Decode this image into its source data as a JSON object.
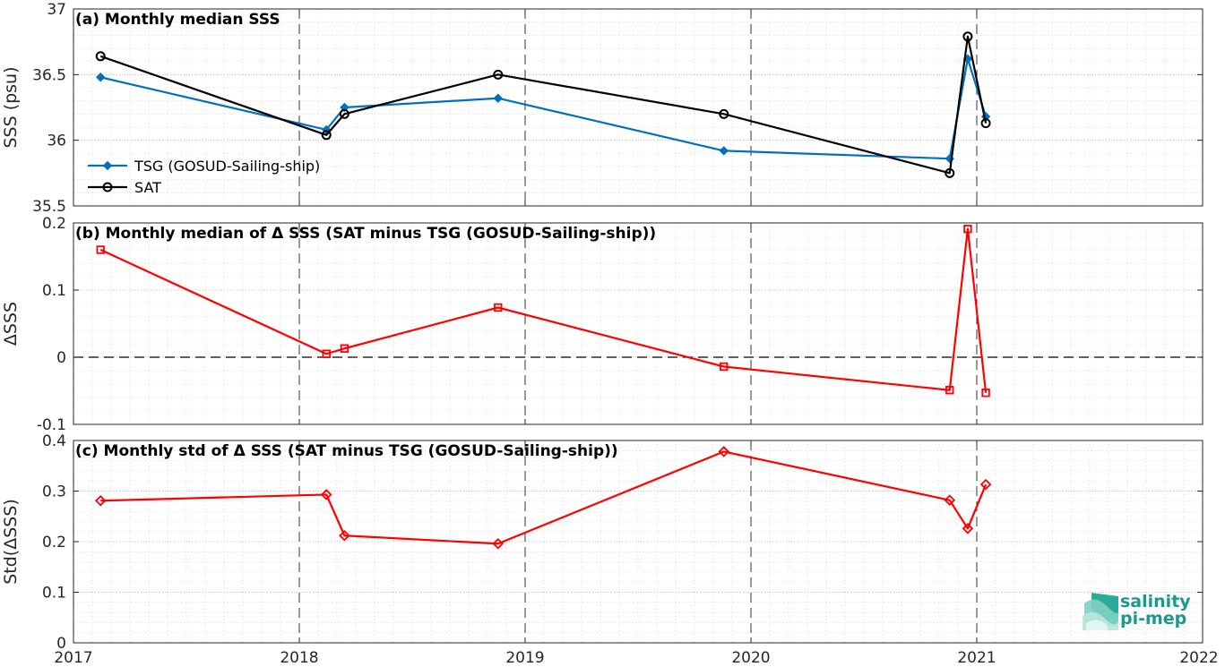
{
  "chart_data": [
    {
      "type": "line",
      "panel": "a",
      "title": "(a) Monthly median SSS",
      "ylabel": "SSS (psu)",
      "ylim": [
        35.5,
        37
      ],
      "yticks": [
        35.5,
        36,
        36.5,
        37
      ],
      "ytick_labels": [
        "35.5",
        "36",
        "36.5",
        "37"
      ],
      "xlim": [
        2017,
        2022
      ],
      "grid": true,
      "legend_position": "center-left",
      "series": [
        {
          "name": "TSG (GOSUD-Sailing-ship)",
          "color": "#0072bd",
          "marker": "filled-diamond",
          "x": [
            2017.12,
            2018.12,
            2018.2,
            2018.88,
            2019.88,
            2020.88,
            2020.96,
            2021.04
          ],
          "y": [
            36.48,
            36.08,
            36.25,
            36.32,
            35.92,
            35.86,
            36.62,
            36.18
          ]
        },
        {
          "name": "SAT",
          "color": "#000000",
          "marker": "open-circle",
          "x": [
            2017.12,
            2018.12,
            2018.2,
            2018.88,
            2019.88,
            2020.88,
            2020.96,
            2021.04
          ],
          "y": [
            36.64,
            36.04,
            36.2,
            36.5,
            36.2,
            35.75,
            36.79,
            36.13
          ]
        }
      ]
    },
    {
      "type": "line",
      "panel": "b",
      "title": "(b) Monthly median of Δ SSS (SAT minus TSG (GOSUD-Sailing-ship))",
      "ylabel": "ΔSSS",
      "ylim": [
        -0.1,
        0.2
      ],
      "yticks": [
        -0.1,
        0,
        0.1,
        0.2
      ],
      "ytick_labels": [
        "-0.1",
        "0",
        "0.1",
        "0.2"
      ],
      "xlim": [
        2017,
        2022
      ],
      "grid": true,
      "zero_line": true,
      "series": [
        {
          "color": "#ff0000",
          "marker": "open-square",
          "x": [
            2017.12,
            2018.12,
            2018.2,
            2018.88,
            2019.88,
            2020.88,
            2020.96,
            2021.04
          ],
          "y": [
            0.16,
            0.005,
            0.013,
            0.074,
            -0.014,
            -0.049,
            0.191,
            -0.053
          ]
        }
      ]
    },
    {
      "type": "line",
      "panel": "c",
      "title": "(c) Monthly std of Δ SSS (SAT minus TSG (GOSUD-Sailing-ship))",
      "ylabel": "Std(ΔSSS)",
      "ylim": [
        0,
        0.4
      ],
      "yticks": [
        0,
        0.1,
        0.2,
        0.3,
        0.4
      ],
      "ytick_labels": [
        "0",
        "0.1",
        "0.2",
        "0.3",
        "0.4"
      ],
      "xlim": [
        2017,
        2022
      ],
      "xticks": [
        2017,
        2018,
        2019,
        2020,
        2021,
        2022
      ],
      "xtick_labels": [
        "2017",
        "2018",
        "2019",
        "2020",
        "2021",
        "2022"
      ],
      "grid": true,
      "series": [
        {
          "color": "#ff0000",
          "marker": "open-diamond",
          "x": [
            2017.12,
            2018.12,
            2018.2,
            2018.88,
            2019.88,
            2020.88,
            2020.96,
            2021.04
          ],
          "y": [
            0.281,
            0.293,
            0.212,
            0.196,
            0.378,
            0.282,
            0.226,
            0.313
          ]
        }
      ]
    }
  ],
  "logo": {
    "line1": "salinity",
    "line2": "pi-mep",
    "color": "#1a9a8c"
  }
}
